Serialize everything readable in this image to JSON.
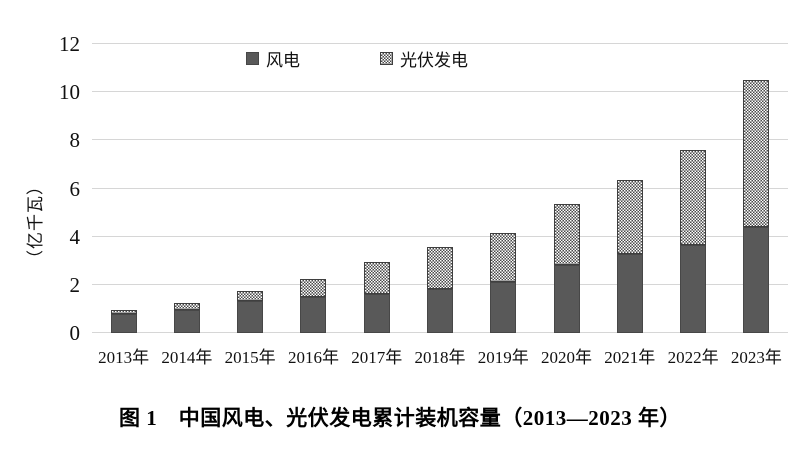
{
  "figure": {
    "caption": "图 1　中国风电、光伏发电累计装机容量（2013—2023 年）"
  },
  "legend": {
    "wind_label": "风电",
    "solar_label": "光伏发电"
  },
  "colors": {
    "wind_fill": "#595959",
    "bar_border": "#3f3f3f",
    "pattern_dot": "#4a4a4a",
    "gridline": "#d6d6d6",
    "text": "#111111"
  },
  "chart_data": {
    "type": "bar",
    "stacked": true,
    "title": "图 1　中国风电、光伏发电累计装机容量（2013—2023 年）",
    "categories": [
      "2013年",
      "2014年",
      "2015年",
      "2016年",
      "2017年",
      "2018年",
      "2019年",
      "2020年",
      "2021年",
      "2022年",
      "2023年"
    ],
    "series": [
      {
        "name": "风电",
        "style": "solid-dark-gray",
        "values": [
          0.77,
          0.96,
          1.31,
          1.49,
          1.64,
          1.84,
          2.1,
          2.82,
          3.28,
          3.65,
          4.41
        ]
      },
      {
        "name": "光伏发电",
        "style": "checker-pattern",
        "values": [
          0.19,
          0.28,
          0.43,
          0.77,
          1.3,
          1.74,
          2.04,
          2.53,
          3.06,
          3.93,
          6.09
        ]
      }
    ],
    "totals": [
      0.96,
      1.24,
      1.74,
      2.26,
      2.94,
      3.58,
      4.14,
      5.35,
      6.34,
      7.58,
      10.5
    ],
    "xlabel": "",
    "ylabel": "（亿千瓦）",
    "yticks": [
      0,
      2,
      4,
      6,
      8,
      10,
      12
    ],
    "ylim": [
      0,
      12
    ],
    "grid": true,
    "legend_position": "top-center"
  }
}
